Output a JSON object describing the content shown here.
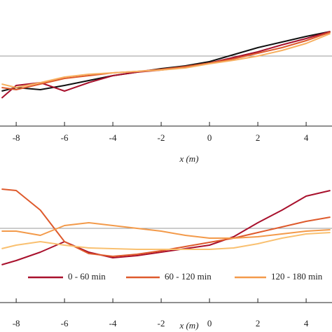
{
  "chart_data": [
    {
      "type": "line",
      "xlabel": "x (m)",
      "xlim": [
        -8.67,
        5.07
      ],
      "xticks": [
        -8,
        -6,
        -4,
        -2,
        0,
        2,
        4
      ],
      "ylim": [
        -2,
        1
      ],
      "hline": 0,
      "hline_color": "#999999",
      "x": [
        -8.6,
        -8,
        -7,
        -6,
        -5,
        -4,
        -3,
        -2,
        -1,
        0,
        1,
        2,
        3,
        4,
        5
      ],
      "series": [
        {
          "color": "#111111",
          "values": [
            -1.0,
            -0.9,
            -0.96,
            -0.84,
            -0.7,
            -0.56,
            -0.46,
            -0.36,
            -0.28,
            -0.16,
            0.04,
            0.24,
            0.4,
            0.56,
            0.7
          ]
        },
        {
          "color": "#a8102c",
          "values": [
            -1.2,
            -0.84,
            -0.76,
            -1.0,
            -0.76,
            -0.56,
            -0.46,
            -0.4,
            -0.32,
            -0.2,
            -0.04,
            0.12,
            0.32,
            0.5,
            0.7
          ]
        },
        {
          "color": "#de5a2c",
          "values": [
            -0.9,
            -0.96,
            -0.8,
            -0.64,
            -0.56,
            -0.48,
            -0.44,
            -0.38,
            -0.3,
            -0.2,
            -0.08,
            0.08,
            0.24,
            0.44,
            0.68
          ]
        },
        {
          "color": "#f7b060",
          "values": [
            -0.8,
            -0.9,
            -0.76,
            -0.6,
            -0.52,
            -0.48,
            -0.44,
            -0.4,
            -0.34,
            -0.22,
            -0.12,
            0,
            0.16,
            0.36,
            0.64
          ]
        }
      ]
    },
    {
      "type": "line",
      "xlabel": "x (m)",
      "xlim": [
        -8.67,
        5.07
      ],
      "xticks": [
        -8,
        -6,
        -4,
        -2,
        0,
        2,
        4
      ],
      "ylim": [
        -2.12,
        1.52
      ],
      "hline": 0,
      "hline_color": "#999999",
      "x": [
        -8.6,
        -8,
        -7,
        -6,
        -5,
        -4,
        -3,
        -2,
        -1,
        0,
        1,
        2,
        3,
        4,
        5
      ],
      "series": [
        {
          "name": "0 - 60 min",
          "color": "#a8102c",
          "values": [
            -1.04,
            -0.92,
            -0.68,
            -0.38,
            -0.68,
            -0.84,
            -0.78,
            -0.68,
            -0.58,
            -0.48,
            -0.24,
            0.16,
            0.52,
            0.92,
            1.08
          ]
        },
        {
          "name": "60 - 120 min",
          "color": "#de5a2c",
          "values": [
            1.12,
            1.08,
            0.52,
            -0.38,
            -0.72,
            -0.8,
            -0.74,
            -0.64,
            -0.52,
            -0.4,
            -0.28,
            -0.12,
            0.04,
            0.2,
            0.32
          ]
        },
        {
          "name": "120 - 180 min",
          "color": "#f39a4a",
          "values": [
            -0.08,
            -0.08,
            -0.2,
            0.08,
            0.16,
            0.08,
            0,
            -0.08,
            -0.2,
            -0.28,
            -0.28,
            -0.24,
            -0.16,
            -0.08,
            -0.04
          ]
        },
        {
          "color": "#f9c070",
          "values": [
            -0.58,
            -0.48,
            -0.38,
            -0.48,
            -0.56,
            -0.58,
            -0.6,
            -0.6,
            -0.6,
            -0.6,
            -0.56,
            -0.44,
            -0.28,
            -0.16,
            -0.12
          ]
        }
      ]
    }
  ]
}
